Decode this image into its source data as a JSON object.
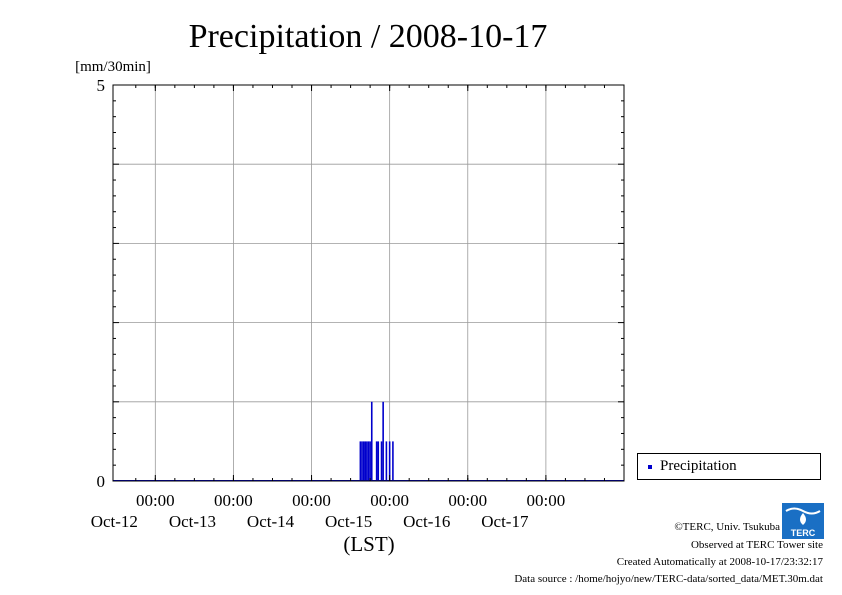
{
  "chart_data": {
    "type": "bar",
    "title": "Precipitation / 2008-10-17",
    "ylabel": "[mm/30min]",
    "xlabel": "(LST)",
    "ylim": [
      0,
      5
    ],
    "y_ticks": [
      "0",
      "5"
    ],
    "x_range": [
      "2008-10-11 11:00",
      "2008-10-18 00:00"
    ],
    "x_ticks": [
      {
        "time": "2008-10-12 00:00",
        "label1": "00:00",
        "label2": "Oct-12"
      },
      {
        "time": "2008-10-13 00:00",
        "label1": "00:00",
        "label2": "Oct-13"
      },
      {
        "time": "2008-10-14 00:00",
        "label1": "00:00",
        "label2": "Oct-14"
      },
      {
        "time": "2008-10-15 00:00",
        "label1": "00:00",
        "label2": "Oct-15"
      },
      {
        "time": "2008-10-16 00:00",
        "label1": "00:00",
        "label2": "Oct-16"
      },
      {
        "time": "2008-10-17 00:00",
        "label1": "00:00",
        "label2": "Oct-17"
      }
    ],
    "grid": true,
    "legend_position": "right",
    "series": [
      {
        "name": "Precipitation",
        "color": "#0000cc",
        "points": [
          {
            "time": "2008-10-14 15:00",
            "value": 0.5
          },
          {
            "time": "2008-10-14 15:30",
            "value": 0.5
          },
          {
            "time": "2008-10-14 16:00",
            "value": 0.5
          },
          {
            "time": "2008-10-14 16:30",
            "value": 0.5
          },
          {
            "time": "2008-10-14 17:00",
            "value": 0.5
          },
          {
            "time": "2008-10-14 17:30",
            "value": 0.5
          },
          {
            "time": "2008-10-14 18:00",
            "value": 0.5
          },
          {
            "time": "2008-10-14 18:30",
            "value": 1.0
          },
          {
            "time": "2008-10-14 20:00",
            "value": 0.5
          },
          {
            "time": "2008-10-14 20:30",
            "value": 0.5
          },
          {
            "time": "2008-10-14 21:30",
            "value": 0.5
          },
          {
            "time": "2008-10-14 22:00",
            "value": 1.0
          },
          {
            "time": "2008-10-14 23:00",
            "value": 0.5
          },
          {
            "time": "2008-10-15 00:00",
            "value": 0.5
          },
          {
            "time": "2008-10-15 01:00",
            "value": 0.5
          }
        ]
      }
    ]
  },
  "legend": {
    "label": "Precipitation"
  },
  "footer": {
    "copyright": "©TERC, Univ. Tsukuba",
    "observed": "Observed at TERC Tower site",
    "created": "Created Automatically at 2008-10-17/23:32:17",
    "source": "Data source : /home/hojyo/new/TERC-data/sorted_data/MET.30m.dat"
  },
  "logo": {
    "text": "TERC",
    "color": "#1a6fc4"
  }
}
